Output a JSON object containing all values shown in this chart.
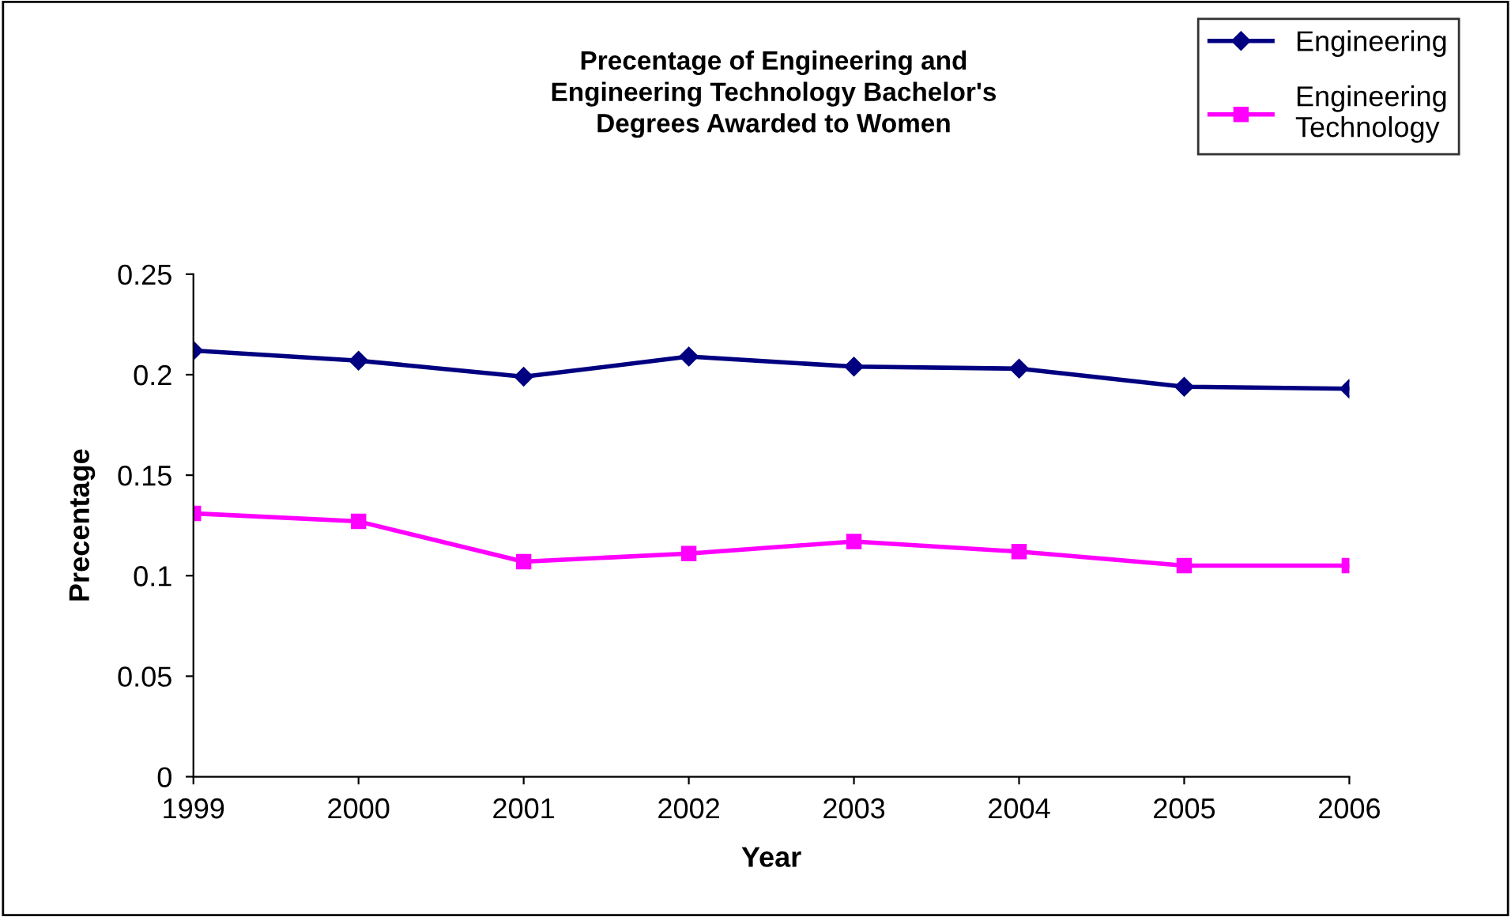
{
  "chart_data": {
    "type": "line",
    "title": "Precentage of Engineering and\nEngineering Technology Bachelor's\nDegrees Awarded to Women",
    "xlabel": "Year",
    "ylabel": "Precentage",
    "categories": [
      "1999",
      "2000",
      "2001",
      "2002",
      "2003",
      "2004",
      "2005",
      "2006"
    ],
    "series": [
      {
        "name": "Engineering",
        "color": "#000080",
        "marker": "diamond",
        "values": [
          0.212,
          0.207,
          0.199,
          0.209,
          0.204,
          0.203,
          0.194,
          0.193
        ]
      },
      {
        "name": "Engineering\nTechnology",
        "color": "#ff00ff",
        "marker": "square",
        "values": [
          0.131,
          0.127,
          0.107,
          0.111,
          0.117,
          0.112,
          0.105,
          0.105
        ]
      }
    ],
    "ylim": [
      0,
      0.25
    ],
    "yticks": [
      {
        "value": 0,
        "label": "0"
      },
      0.05,
      0.1,
      0.15,
      0.2,
      0.25
    ],
    "grid": false,
    "legend": "top right",
    "line_style": "solid"
  }
}
